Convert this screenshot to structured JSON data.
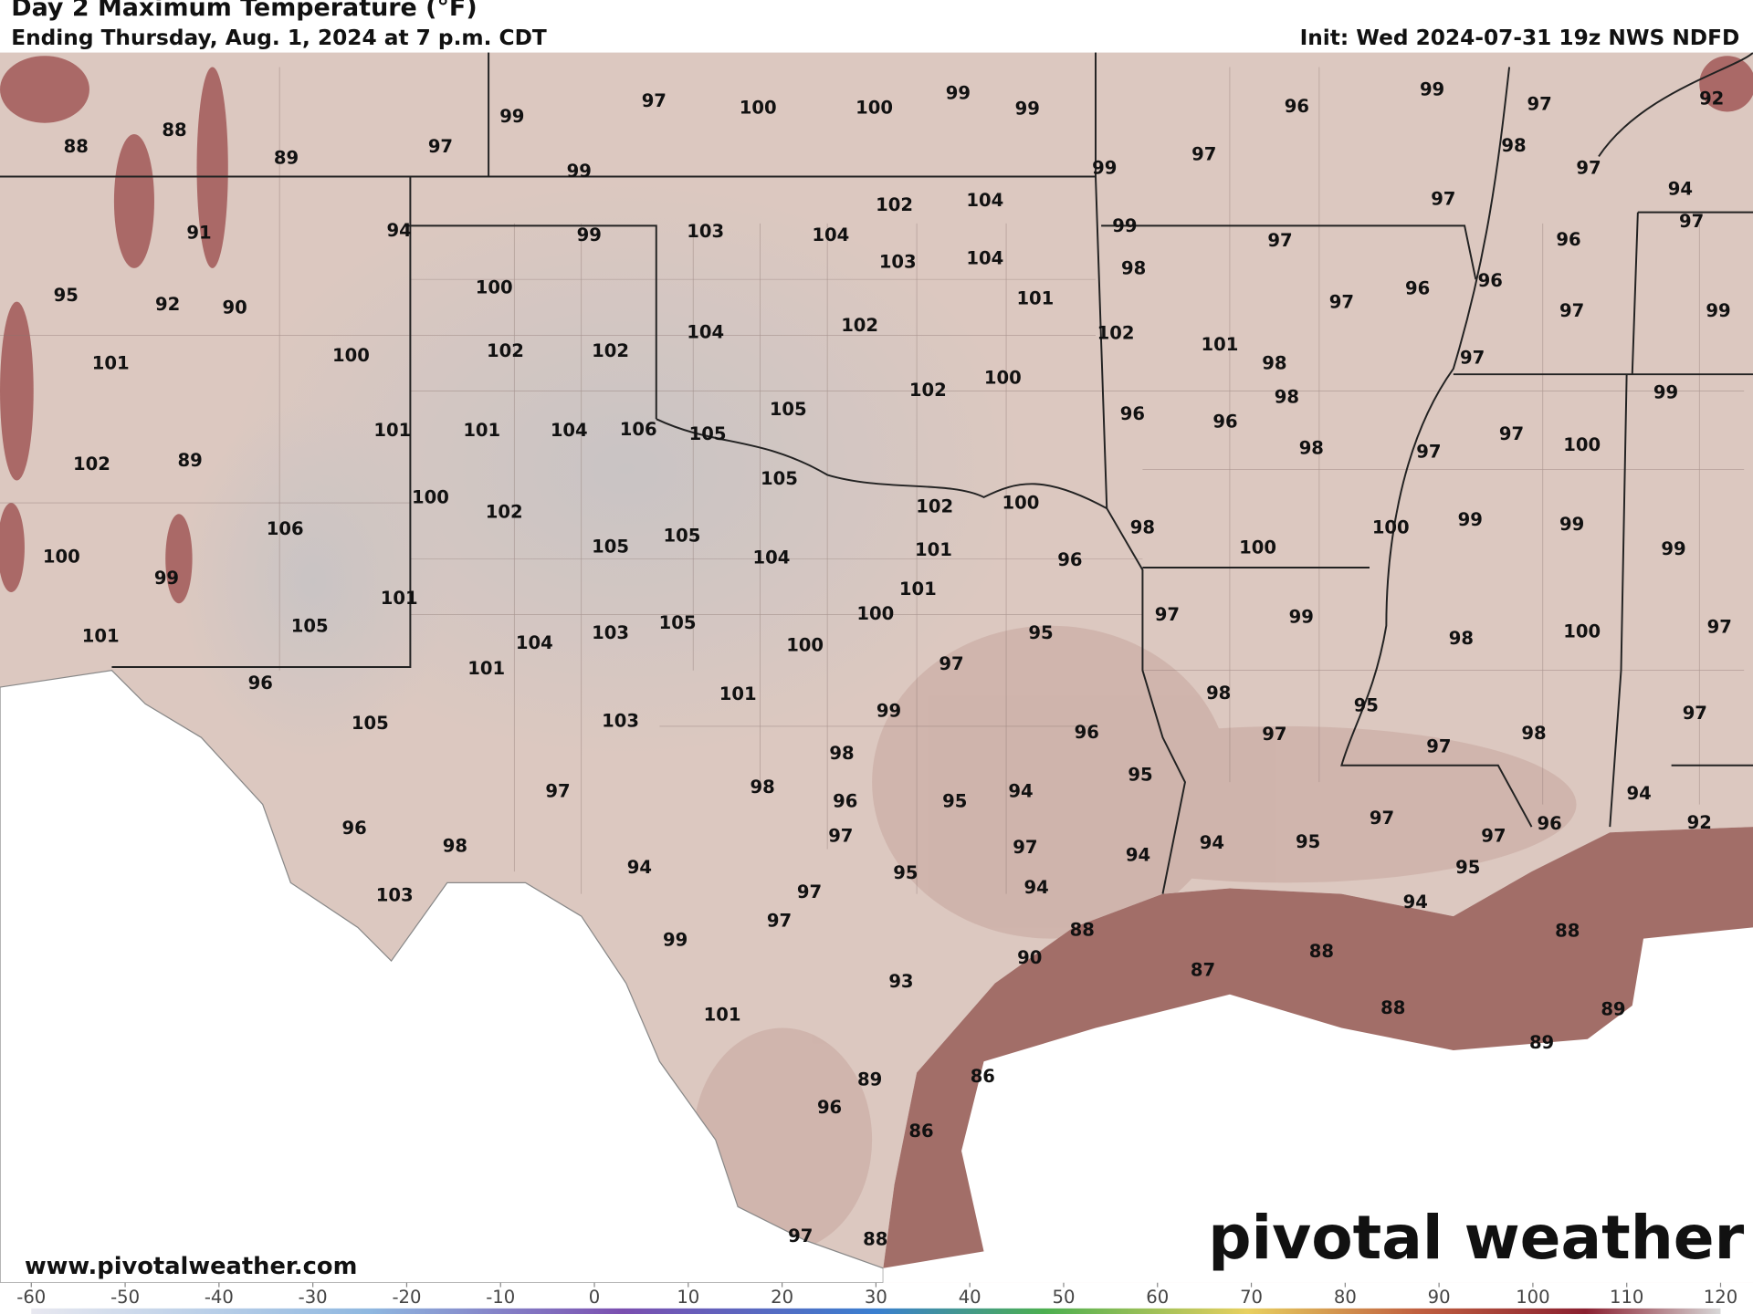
{
  "header": {
    "title": "Day 2 Maximum Temperature (°F)",
    "subtitle": "Ending Thursday, Aug. 1, 2024 at 7 p.m. CDT",
    "init": "Init: Wed 2024-07-31 19z NWS NDFD"
  },
  "map": {
    "labels": [
      88,
      88,
      89,
      97,
      99,
      97,
      100,
      100,
      99,
      99,
      99,
      99,
      96,
      99,
      97,
      92,
      98,
      97,
      94,
      97,
      97,
      97,
      99,
      97,
      96,
      91,
      94,
      99,
      103,
      104,
      102,
      104,
      103,
      104,
      98,
      97,
      96,
      96,
      97,
      99,
      95,
      92,
      90,
      100,
      101,
      102,
      104,
      102,
      101,
      97,
      101,
      100,
      102,
      102,
      98,
      102,
      100,
      98,
      99,
      101,
      101,
      104,
      106,
      105,
      105,
      96,
      96,
      97,
      100,
      102,
      89,
      98,
      97,
      105,
      100,
      102,
      102,
      100,
      98,
      100,
      99,
      99,
      106,
      100,
      105,
      105,
      104,
      101,
      96,
      100,
      99,
      99,
      101,
      101,
      100,
      97,
      99,
      101,
      105,
      104,
      103,
      105,
      100,
      95,
      98,
      100,
      97,
      101,
      97,
      96,
      101,
      99,
      98,
      95,
      97,
      105,
      103,
      97,
      96,
      97,
      98,
      98,
      98,
      96,
      95,
      94,
      95,
      97,
      97,
      97,
      96,
      94,
      92,
      96,
      98,
      97,
      97,
      94,
      95,
      94,
      95,
      94,
      95,
      97,
      94,
      103,
      94,
      88,
      88,
      97,
      99,
      88,
      90,
      87,
      93,
      88,
      89,
      101,
      89,
      86,
      89,
      96,
      86,
      97,
      88
    ]
  },
  "colorbar": {
    "ticks": [
      -60,
      -50,
      -40,
      -30,
      -20,
      -10,
      0,
      10,
      20,
      30,
      40,
      50,
      60,
      70,
      80,
      90,
      100,
      110,
      120
    ]
  },
  "footer": {
    "url": "www.pivotalweather.com",
    "logo": "pivotal weather"
  }
}
